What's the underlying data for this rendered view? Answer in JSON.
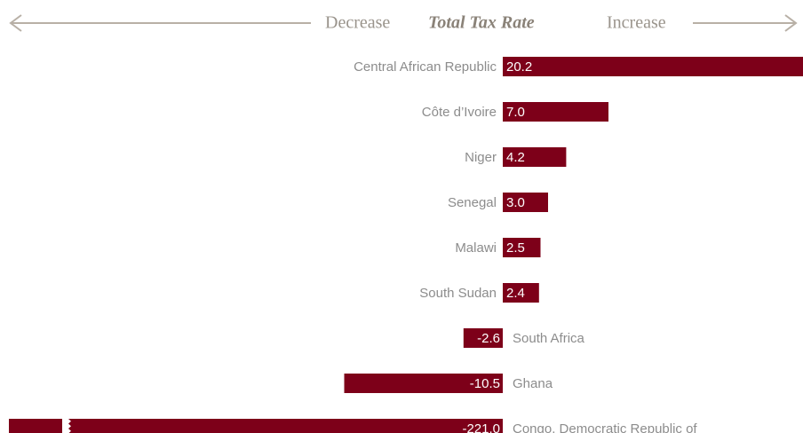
{
  "chart_data": {
    "type": "bar",
    "orientation": "horizontal",
    "title": "Total Tax Rate",
    "left_label": "Decrease",
    "right_label": "Increase",
    "categories": [
      "Central African Republic",
      "Côte d’Ivoire",
      "Niger",
      "Senegal",
      "Malawi",
      "South Sudan",
      "South Africa",
      "Ghana",
      "Congo, Democratic Republic of"
    ],
    "values": [
      20.2,
      7.0,
      4.2,
      3.0,
      2.5,
      2.4,
      -2.6,
      -10.5,
      -221.0
    ],
    "value_labels": [
      "20.2",
      "7.0",
      "4.2",
      "3.0",
      "2.5",
      "2.4",
      "-2.6",
      "-10.5",
      "-221.0"
    ],
    "color": "#7d0019"
  }
}
